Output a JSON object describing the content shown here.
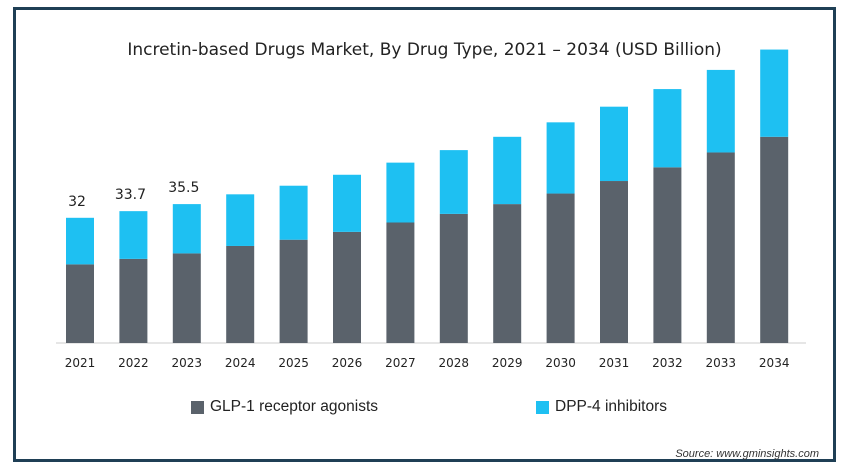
{
  "chart_data": {
    "type": "bar",
    "stacked": true,
    "title": "Incretin-based Drugs Market, By Drug Type, 2021 – 2034 (USD Billion)",
    "categories": [
      "2021",
      "2022",
      "2023",
      "2024",
      "2025",
      "2026",
      "2027",
      "2028",
      "2029",
      "2030",
      "2031",
      "2032",
      "2033",
      "2034"
    ],
    "series": [
      {
        "name": "GLP-1 receptor agonists",
        "color": "#5a626b",
        "values": [
          20.1,
          21.5,
          22.9,
          24.8,
          26.4,
          28.4,
          30.8,
          33.0,
          35.5,
          38.2,
          41.4,
          44.9,
          48.7,
          52.7
        ]
      },
      {
        "name": "DPP-4 inhibitors",
        "color": "#1ec0f2",
        "values": [
          11.9,
          12.2,
          12.6,
          13.2,
          13.8,
          14.6,
          15.3,
          16.3,
          17.2,
          18.2,
          19.0,
          20.0,
          21.1,
          22.3
        ]
      }
    ],
    "totals_labels": [
      "32",
      "33.7",
      "35.5"
    ],
    "ylim": [
      0,
      80
    ],
    "grid": false,
    "legend": "bottom",
    "source": "Source: www.gminsights.com"
  }
}
